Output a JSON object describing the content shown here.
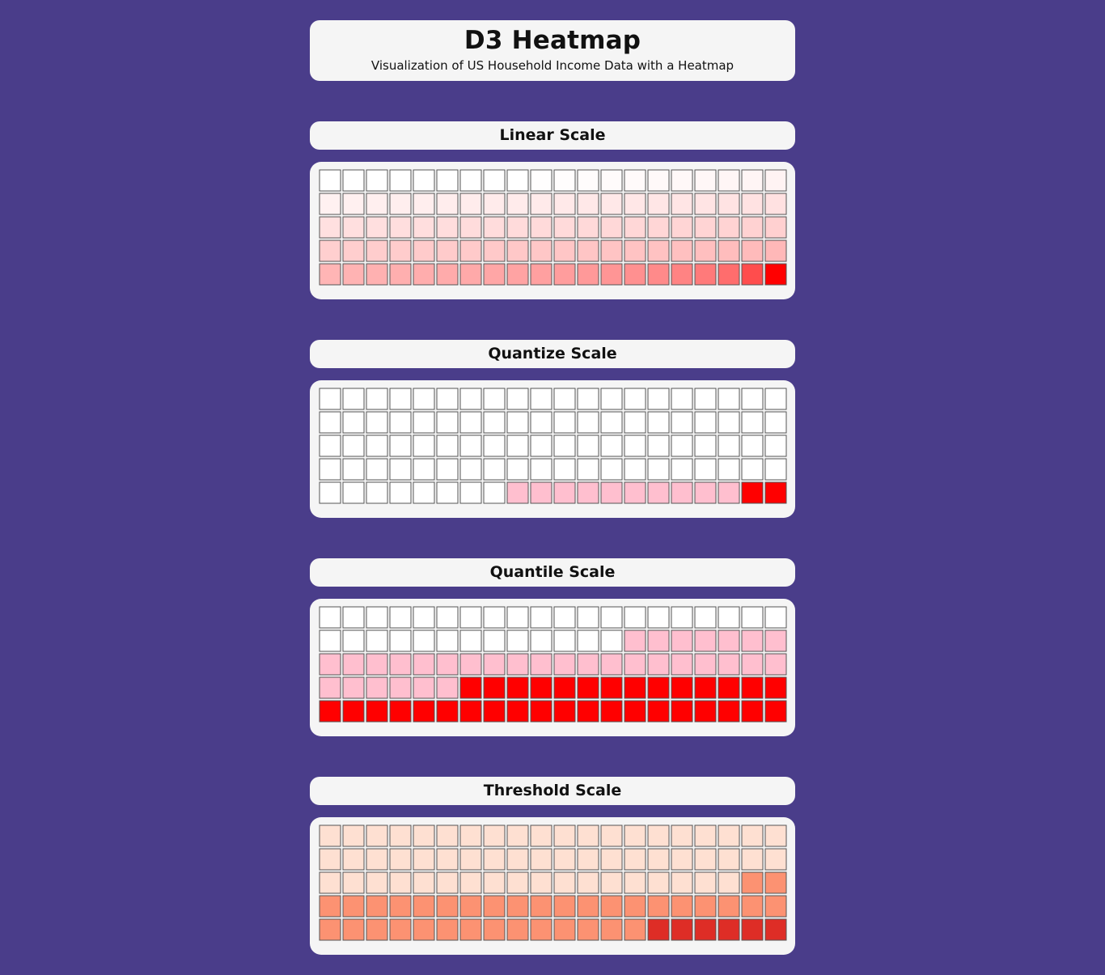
{
  "header": {
    "title": "D3 Heatmap",
    "subtitle": "Visualization of US Household Income Data with a Heatmap"
  },
  "chart_data": [
    {
      "type": "heatmap",
      "title": "Linear Scale",
      "rows": 5,
      "cols": 20,
      "color_range": [
        "#ffffff",
        "#ff0000"
      ],
      "cells": [
        [
          "#ffffff",
          "#ffffff",
          "#ffffff",
          "#ffffff",
          "#ffffff",
          "#ffffff",
          "#ffffff",
          "#ffffff",
          "#ffffff",
          "#fffefe",
          "#fffdfd",
          "#fffcfc",
          "#fffbfb",
          "#fffafa",
          "#fff9f9",
          "#fff8f8",
          "#fff7f7",
          "#fff6f6",
          "#fff5f5",
          "#fff3f3"
        ],
        [
          "#fff1f1",
          "#fff0f0",
          "#ffefef",
          "#ffeeee",
          "#ffeeee",
          "#ffeded",
          "#ffecec",
          "#ffebeb",
          "#ffebeb",
          "#ffeaea",
          "#ffe9e9",
          "#ffe8e8",
          "#ffe8e8",
          "#ffe7e7",
          "#ffe6e6",
          "#ffe5e5",
          "#ffe4e4",
          "#ffe3e3",
          "#ffe2e2",
          "#ffe1e1"
        ],
        [
          "#ffe0e0",
          "#ffdfdf",
          "#ffdfdf",
          "#ffdede",
          "#ffdede",
          "#ffdddd",
          "#ffdcdc",
          "#ffdcdc",
          "#ffdbdb",
          "#ffdada",
          "#ffdada",
          "#ffd9d9",
          "#ffd8d8",
          "#ffd7d7",
          "#ffd6d6",
          "#ffd5d5",
          "#ffd4d4",
          "#ffd3d3",
          "#ffd2d2",
          "#ffd0d0"
        ],
        [
          "#ffcfcf",
          "#ffcece",
          "#ffcdcd",
          "#ffcccc",
          "#ffcbcb",
          "#ffcbcb",
          "#ffcaca",
          "#ffc9c9",
          "#ffc8c8",
          "#ffc7c7",
          "#ffc6c6",
          "#ffc5c5",
          "#ffc4c4",
          "#ffc3c3",
          "#ffc2c2",
          "#ffc0c0",
          "#ffbfbf",
          "#ffbdbd",
          "#ffbbbb",
          "#ffb8b8"
        ],
        [
          "#ffb5b5",
          "#ffb3b3",
          "#ffb1b1",
          "#ffafaf",
          "#ffadad",
          "#ffabab",
          "#ffa9a9",
          "#ffa6a6",
          "#ffa3a3",
          "#ffa0a0",
          "#ff9d9d",
          "#ff9999",
          "#ff9595",
          "#ff9090",
          "#ff8a8a",
          "#ff8383",
          "#ff7a7a",
          "#ff6d6d",
          "#ff4d4d",
          "#ff0000"
        ]
      ]
    },
    {
      "type": "heatmap",
      "title": "Quantize Scale",
      "rows": 5,
      "cols": 20,
      "color_range": [
        "#ffffff",
        "#ffbfcf",
        "#ff0000"
      ],
      "cells": [
        [
          "#ffffff",
          "#ffffff",
          "#ffffff",
          "#ffffff",
          "#ffffff",
          "#ffffff",
          "#ffffff",
          "#ffffff",
          "#ffffff",
          "#ffffff",
          "#ffffff",
          "#ffffff",
          "#ffffff",
          "#ffffff",
          "#ffffff",
          "#ffffff",
          "#ffffff",
          "#ffffff",
          "#ffffff",
          "#ffffff"
        ],
        [
          "#ffffff",
          "#ffffff",
          "#ffffff",
          "#ffffff",
          "#ffffff",
          "#ffffff",
          "#ffffff",
          "#ffffff",
          "#ffffff",
          "#ffffff",
          "#ffffff",
          "#ffffff",
          "#ffffff",
          "#ffffff",
          "#ffffff",
          "#ffffff",
          "#ffffff",
          "#ffffff",
          "#ffffff",
          "#ffffff"
        ],
        [
          "#ffffff",
          "#ffffff",
          "#ffffff",
          "#ffffff",
          "#ffffff",
          "#ffffff",
          "#ffffff",
          "#ffffff",
          "#ffffff",
          "#ffffff",
          "#ffffff",
          "#ffffff",
          "#ffffff",
          "#ffffff",
          "#ffffff",
          "#ffffff",
          "#ffffff",
          "#ffffff",
          "#ffffff",
          "#ffffff"
        ],
        [
          "#ffffff",
          "#ffffff",
          "#ffffff",
          "#ffffff",
          "#ffffff",
          "#ffffff",
          "#ffffff",
          "#ffffff",
          "#ffffff",
          "#ffffff",
          "#ffffff",
          "#ffffff",
          "#ffffff",
          "#ffffff",
          "#ffffff",
          "#ffffff",
          "#ffffff",
          "#ffffff",
          "#ffffff",
          "#ffffff"
        ],
        [
          "#ffffff",
          "#ffffff",
          "#ffffff",
          "#ffffff",
          "#ffffff",
          "#ffffff",
          "#ffffff",
          "#ffffff",
          "#ffbfcf",
          "#ffbfcf",
          "#ffbfcf",
          "#ffbfcf",
          "#ffbfcf",
          "#ffbfcf",
          "#ffbfcf",
          "#ffbfcf",
          "#ffbfcf",
          "#ffbfcf",
          "#ff0000",
          "#ff0000"
        ]
      ]
    },
    {
      "type": "heatmap",
      "title": "Quantile Scale",
      "rows": 5,
      "cols": 20,
      "color_range": [
        "#ffffff",
        "#ffbfcf",
        "#ff0000"
      ],
      "cells": [
        [
          "#ffffff",
          "#ffffff",
          "#ffffff",
          "#ffffff",
          "#ffffff",
          "#ffffff",
          "#ffffff",
          "#ffffff",
          "#ffffff",
          "#ffffff",
          "#ffffff",
          "#ffffff",
          "#ffffff",
          "#ffffff",
          "#ffffff",
          "#ffffff",
          "#ffffff",
          "#ffffff",
          "#ffffff",
          "#ffffff"
        ],
        [
          "#ffffff",
          "#ffffff",
          "#ffffff",
          "#ffffff",
          "#ffffff",
          "#ffffff",
          "#ffffff",
          "#ffffff",
          "#ffffff",
          "#ffffff",
          "#ffffff",
          "#ffffff",
          "#ffffff",
          "#ffbfcf",
          "#ffbfcf",
          "#ffbfcf",
          "#ffbfcf",
          "#ffbfcf",
          "#ffbfcf",
          "#ffbfcf"
        ],
        [
          "#ffbfcf",
          "#ffbfcf",
          "#ffbfcf",
          "#ffbfcf",
          "#ffbfcf",
          "#ffbfcf",
          "#ffbfcf",
          "#ffbfcf",
          "#ffbfcf",
          "#ffbfcf",
          "#ffbfcf",
          "#ffbfcf",
          "#ffbfcf",
          "#ffbfcf",
          "#ffbfcf",
          "#ffbfcf",
          "#ffbfcf",
          "#ffbfcf",
          "#ffbfcf",
          "#ffbfcf"
        ],
        [
          "#ffbfcf",
          "#ffbfcf",
          "#ffbfcf",
          "#ffbfcf",
          "#ffbfcf",
          "#ffbfcf",
          "#ff0000",
          "#ff0000",
          "#ff0000",
          "#ff0000",
          "#ff0000",
          "#ff0000",
          "#ff0000",
          "#ff0000",
          "#ff0000",
          "#ff0000",
          "#ff0000",
          "#ff0000",
          "#ff0000",
          "#ff0000"
        ],
        [
          "#ff0000",
          "#ff0000",
          "#ff0000",
          "#ff0000",
          "#ff0000",
          "#ff0000",
          "#ff0000",
          "#ff0000",
          "#ff0000",
          "#ff0000",
          "#ff0000",
          "#ff0000",
          "#ff0000",
          "#ff0000",
          "#ff0000",
          "#ff0000",
          "#ff0000",
          "#ff0000",
          "#ff0000",
          "#ff0000"
        ]
      ]
    },
    {
      "type": "heatmap",
      "title": "Threshold Scale",
      "rows": 5,
      "cols": 20,
      "color_range": [
        "#fee0d2",
        "#fc9272",
        "#de2d26"
      ],
      "cells": [
        [
          "#fee0d2",
          "#fee0d2",
          "#fee0d2",
          "#fee0d2",
          "#fee0d2",
          "#fee0d2",
          "#fee0d2",
          "#fee0d2",
          "#fee0d2",
          "#fee0d2",
          "#fee0d2",
          "#fee0d2",
          "#fee0d2",
          "#fee0d2",
          "#fee0d2",
          "#fee0d2",
          "#fee0d2",
          "#fee0d2",
          "#fee0d2",
          "#fee0d2"
        ],
        [
          "#fee0d2",
          "#fee0d2",
          "#fee0d2",
          "#fee0d2",
          "#fee0d2",
          "#fee0d2",
          "#fee0d2",
          "#fee0d2",
          "#fee0d2",
          "#fee0d2",
          "#fee0d2",
          "#fee0d2",
          "#fee0d2",
          "#fee0d2",
          "#fee0d2",
          "#fee0d2",
          "#fee0d2",
          "#fee0d2",
          "#fee0d2",
          "#fee0d2"
        ],
        [
          "#fee0d2",
          "#fee0d2",
          "#fee0d2",
          "#fee0d2",
          "#fee0d2",
          "#fee0d2",
          "#fee0d2",
          "#fee0d2",
          "#fee0d2",
          "#fee0d2",
          "#fee0d2",
          "#fee0d2",
          "#fee0d2",
          "#fee0d2",
          "#fee0d2",
          "#fee0d2",
          "#fee0d2",
          "#fee0d2",
          "#fc9272",
          "#fc9272"
        ],
        [
          "#fc9272",
          "#fc9272",
          "#fc9272",
          "#fc9272",
          "#fc9272",
          "#fc9272",
          "#fc9272",
          "#fc9272",
          "#fc9272",
          "#fc9272",
          "#fc9272",
          "#fc9272",
          "#fc9272",
          "#fc9272",
          "#fc9272",
          "#fc9272",
          "#fc9272",
          "#fc9272",
          "#fc9272",
          "#fc9272"
        ],
        [
          "#fc9272",
          "#fc9272",
          "#fc9272",
          "#fc9272",
          "#fc9272",
          "#fc9272",
          "#fc9272",
          "#fc9272",
          "#fc9272",
          "#fc9272",
          "#fc9272",
          "#fc9272",
          "#fc9272",
          "#fc9272",
          "#de2d26",
          "#de2d26",
          "#de2d26",
          "#de2d26",
          "#de2d26",
          "#de2d26"
        ]
      ]
    }
  ]
}
